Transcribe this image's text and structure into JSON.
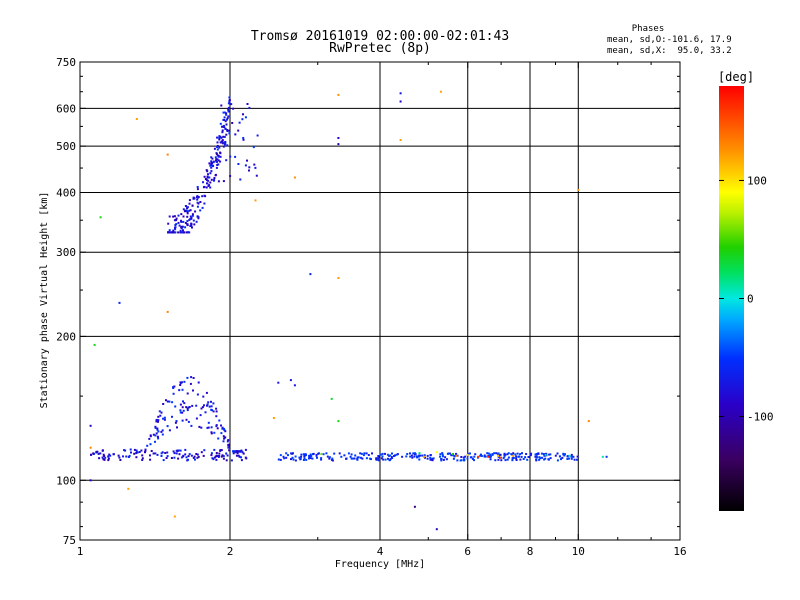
{
  "header": {
    "title": "Tromsø 20161019 02:00:00-02:01:43",
    "subtitle": "RwPretec (8p)",
    "stats_title": "Phases",
    "stats_line1": "mean, sd,O:-101.6, 17.9",
    "stats_line2": "mean, sd,X:  95.0, 33.2"
  },
  "chart_data": {
    "type": "scatter",
    "xlabel": "Frequency [MHz]",
    "ylabel": "Stationary phase Virtual Height [km]",
    "xscale": "log",
    "yscale": "log",
    "xlim": [
      1,
      16
    ],
    "ylim": [
      75,
      750
    ],
    "xticks": [
      1,
      2,
      4,
      6,
      8,
      10,
      16
    ],
    "xtick_labels": [
      "1",
      "2",
      "4",
      "6",
      "8",
      "10",
      "16"
    ],
    "yticks": [
      75,
      100,
      200,
      300,
      400,
      500,
      600,
      750
    ],
    "ytick_labels": [
      "75",
      "100",
      "200",
      "300",
      "400",
      "500",
      "600",
      "750"
    ],
    "grid_x": [
      2,
      4,
      6,
      8,
      10
    ],
    "grid_y": [
      100,
      200,
      300,
      400,
      500,
      600
    ],
    "colorbar": {
      "label": "[deg]",
      "range": [
        -180,
        180
      ],
      "tick_values": [
        100,
        0,
        -100
      ],
      "tick_labels": [
        "100",
        "0",
        "-100"
      ]
    },
    "clusters": [
      {
        "name_hint": "F-region trace",
        "x_range": [
          1.5,
          2.0
        ],
        "y_range": [
          330,
          640
        ],
        "phase": -105,
        "count": 240
      },
      {
        "name_hint": "F-region spread",
        "x_range": [
          1.9,
          2.3
        ],
        "y_range": [
          420,
          640
        ],
        "phase": -100,
        "count": 40
      },
      {
        "name_hint": "E-region lower trace",
        "x_range": [
          1.05,
          2.2
        ],
        "y_range": [
          110,
          116
        ],
        "phase": -105,
        "count": 140
      },
      {
        "name_hint": "E-region arc",
        "x_range": [
          1.35,
          2.1
        ],
        "y_range": [
          115,
          165
        ],
        "phase": -100,
        "count": 150
      },
      {
        "name_hint": "E-region main trace",
        "x_range": [
          2.5,
          10.0
        ],
        "y_range": [
          110,
          114
        ],
        "phase": -90,
        "count": 300
      }
    ],
    "points": [
      {
        "x": 1.3,
        "y": 570,
        "v": 120
      },
      {
        "x": 1.5,
        "y": 480,
        "v": 130
      },
      {
        "x": 1.1,
        "y": 355,
        "v": 40
      },
      {
        "x": 1.2,
        "y": 235,
        "v": -95
      },
      {
        "x": 1.5,
        "y": 225,
        "v": 130
      },
      {
        "x": 1.07,
        "y": 192,
        "v": 40
      },
      {
        "x": 2.7,
        "y": 430,
        "v": 125
      },
      {
        "x": 2.25,
        "y": 385,
        "v": 120
      },
      {
        "x": 3.3,
        "y": 640,
        "v": 125
      },
      {
        "x": 3.3,
        "y": 520,
        "v": -110
      },
      {
        "x": 3.3,
        "y": 505,
        "v": -120
      },
      {
        "x": 4.4,
        "y": 645,
        "v": -100
      },
      {
        "x": 4.4,
        "y": 620,
        "v": -110
      },
      {
        "x": 5.3,
        "y": 650,
        "v": 120
      },
      {
        "x": 4.4,
        "y": 515,
        "v": 120
      },
      {
        "x": 2.9,
        "y": 270,
        "v": -95
      },
      {
        "x": 3.3,
        "y": 265,
        "v": 120
      },
      {
        "x": 10.0,
        "y": 405,
        "v": 120
      },
      {
        "x": 2.5,
        "y": 160,
        "v": -100
      },
      {
        "x": 2.65,
        "y": 162,
        "v": -100
      },
      {
        "x": 2.7,
        "y": 158,
        "v": -100
      },
      {
        "x": 3.2,
        "y": 148,
        "v": 30
      },
      {
        "x": 3.3,
        "y": 133,
        "v": 40
      },
      {
        "x": 2.45,
        "y": 135,
        "v": 120
      },
      {
        "x": 10.5,
        "y": 133,
        "v": 130
      },
      {
        "x": 1.05,
        "y": 117,
        "v": 130
      },
      {
        "x": 1.05,
        "y": 130,
        "v": -110
      },
      {
        "x": 1.05,
        "y": 100,
        "v": -110
      },
      {
        "x": 1.25,
        "y": 96,
        "v": 120
      },
      {
        "x": 1.55,
        "y": 84,
        "v": 120
      },
      {
        "x": 4.7,
        "y": 88,
        "v": -130
      },
      {
        "x": 5.2,
        "y": 79,
        "v": -110
      },
      {
        "x": 11.2,
        "y": 112,
        "v": 10
      },
      {
        "x": 11.4,
        "y": 112,
        "v": -90
      },
      {
        "x": 3.05,
        "y": 113.5,
        "v": 60
      },
      {
        "x": 4.8,
        "y": 114,
        "v": 20
      },
      {
        "x": 5.2,
        "y": 114.5,
        "v": 90
      },
      {
        "x": 5.6,
        "y": 113.5,
        "v": 40
      },
      {
        "x": 6.3,
        "y": 112,
        "v": 160
      },
      {
        "x": 6.6,
        "y": 112,
        "v": 170
      },
      {
        "x": 7.0,
        "y": 111.5,
        "v": 160
      },
      {
        "x": 6.0,
        "y": 113,
        "v": 100
      },
      {
        "x": 4.9,
        "y": 112,
        "v": 120
      },
      {
        "x": 7.4,
        "y": 112.5,
        "v": 120
      },
      {
        "x": 8.6,
        "y": 113,
        "v": 10
      },
      {
        "x": 9.6,
        "y": 112.5,
        "v": 0
      },
      {
        "x": 5.7,
        "y": 112.5,
        "v": 130
      },
      {
        "x": 6.9,
        "y": 112.5,
        "v": 110
      }
    ]
  }
}
